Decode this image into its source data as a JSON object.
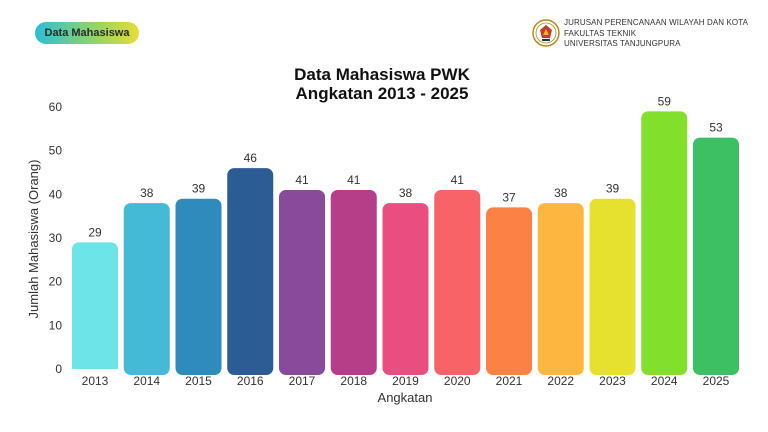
{
  "badge": {
    "label": "Data Mahasiswa"
  },
  "institution": {
    "lines": [
      "JURUSAN PERENCANAAN WILAYAH DAN KOTA",
      "FAKULTAS TEKNIK",
      "UNIVERSITAS TANJUNGPURA"
    ],
    "logo_icon": "university-seal-icon"
  },
  "chart_data": {
    "type": "bar",
    "title": [
      "Data Mahasiswa PWK",
      "Angkatan 2013 - 2025"
    ],
    "xlabel": "Angkatan",
    "ylabel": "Jumlah Mahasiswa (Orang)",
    "ylim": [
      0,
      60
    ],
    "yticks": [
      0,
      10,
      20,
      30,
      40,
      50,
      60
    ],
    "grid": false,
    "categories": [
      "2013",
      "2014",
      "2015",
      "2016",
      "2017",
      "2018",
      "2019",
      "2020",
      "2021",
      "2022",
      "2023",
      "2024",
      "2025"
    ],
    "values": [
      29,
      38,
      39,
      46,
      41,
      41,
      38,
      41,
      37,
      38,
      39,
      59,
      53
    ],
    "colors": [
      "#6ce4e8",
      "#45bad6",
      "#2e8bbb",
      "#2b5c94",
      "#8a4a9c",
      "#b63e88",
      "#ea4d7f",
      "#f86368",
      "#fb8145",
      "#fdb740",
      "#e6e12f",
      "#82df2b",
      "#3cc063"
    ]
  }
}
